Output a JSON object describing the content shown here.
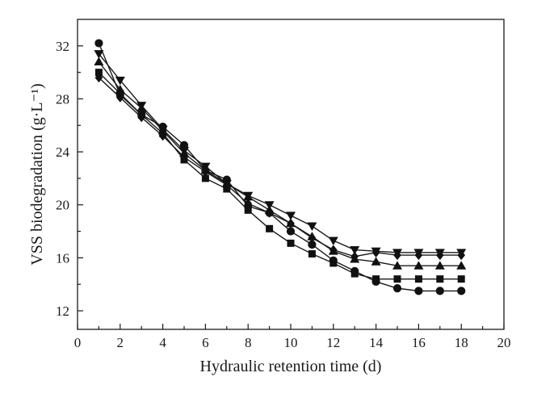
{
  "chart_data": {
    "type": "line",
    "title": "",
    "xlabel": "Hydraulic retention time (d)",
    "ylabel": "VSS biodegradation (g·L⁻¹)",
    "xlim": [
      0,
      20
    ],
    "ylim": [
      10.6,
      34.0
    ],
    "xticks": [
      0,
      2,
      4,
      6,
      8,
      10,
      12,
      14,
      16,
      18,
      20
    ],
    "yticks": [
      12,
      16,
      20,
      24,
      28,
      32
    ],
    "grid": false,
    "legend": "none",
    "x": [
      1,
      2,
      3,
      4,
      5,
      6,
      7,
      8,
      9,
      10,
      11,
      12,
      13,
      14,
      15,
      16,
      17,
      18
    ],
    "series": [
      {
        "marker": "square",
        "values": [
          30.0,
          28.4,
          26.8,
          25.4,
          23.4,
          22.0,
          21.2,
          19.6,
          18.2,
          17.1,
          16.3,
          15.6,
          14.8,
          14.4,
          14.4,
          14.4,
          14.4,
          14.4
        ]
      },
      {
        "marker": "circle",
        "values": [
          32.2,
          28.3,
          26.8,
          25.9,
          24.5,
          22.6,
          21.9,
          19.9,
          19.4,
          18.0,
          17.0,
          15.8,
          15.0,
          14.2,
          13.7,
          13.5,
          13.5,
          13.5
        ]
      },
      {
        "marker": "triangle-up",
        "values": [
          30.8,
          28.7,
          27.3,
          25.6,
          23.9,
          22.6,
          21.6,
          20.6,
          19.6,
          18.6,
          17.6,
          16.5,
          15.9,
          15.7,
          15.4,
          15.4,
          15.4,
          15.4
        ]
      },
      {
        "marker": "triangle-down",
        "values": [
          31.4,
          29.4,
          27.5,
          25.7,
          24.1,
          22.9,
          21.6,
          20.7,
          20.0,
          19.2,
          18.4,
          17.3,
          16.6,
          16.5,
          16.4,
          16.4,
          16.4,
          16.4
        ]
      },
      {
        "marker": "diamond",
        "values": [
          29.6,
          28.1,
          26.6,
          25.2,
          23.6,
          22.5,
          21.5,
          20.1,
          19.4,
          18.6,
          17.5,
          16.6,
          16.1,
          16.4,
          16.2,
          16.2,
          16.2,
          16.2
        ]
      }
    ]
  }
}
